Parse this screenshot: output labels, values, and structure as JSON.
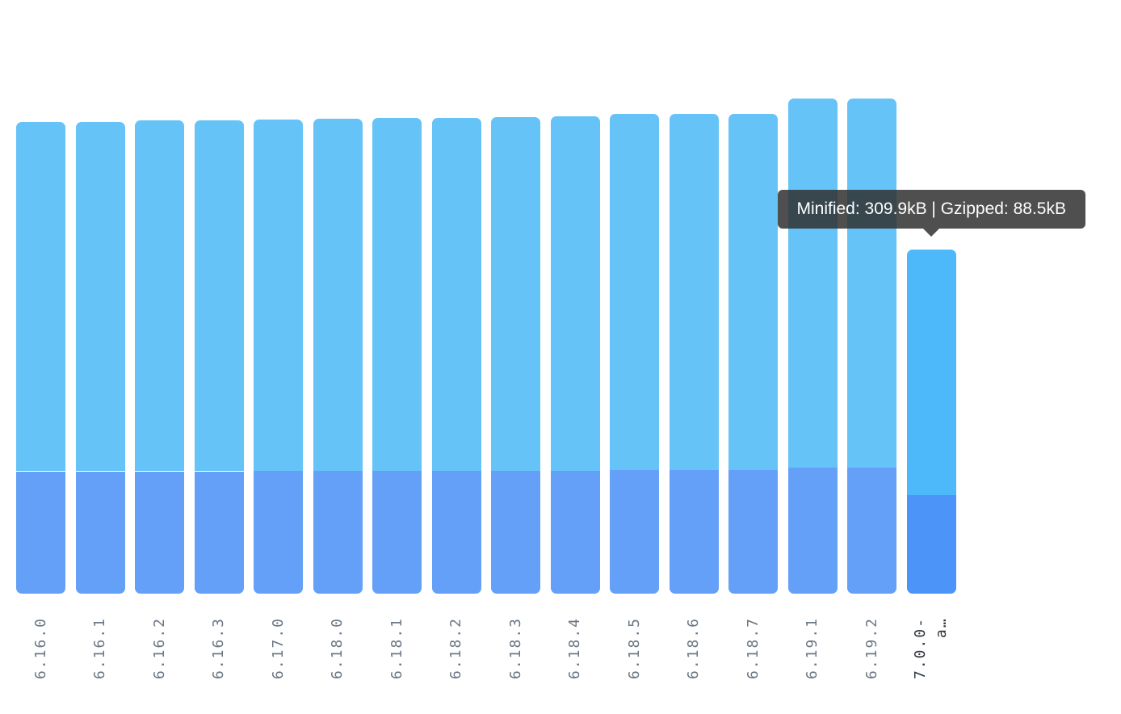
{
  "chart_data": {
    "type": "bar",
    "stacked": true,
    "categories": [
      "6.16.0",
      "6.16.1",
      "6.16.2",
      "6.16.3",
      "6.17.0",
      "6.18.0",
      "6.18.1",
      "6.18.2",
      "6.18.3",
      "6.18.4",
      "6.18.5",
      "6.18.6",
      "6.18.7",
      "6.19.1",
      "6.19.2",
      "7.0.0-a…"
    ],
    "series": [
      {
        "key": "minified",
        "values": [
          424.8,
          424.8,
          426.3,
          426.3,
          427.0,
          427.7,
          428.5,
          428.5,
          429.2,
          429.9,
          432.1,
          432.1,
          432.1,
          445.9,
          445.9,
          309.9
        ]
      },
      {
        "key": "gzipped",
        "values": [
          110.2,
          110.2,
          110.2,
          110.2,
          110.6,
          110.6,
          110.6,
          110.6,
          110.6,
          110.6,
          111.3,
          111.3,
          111.3,
          113.5,
          113.5,
          88.5
        ]
      }
    ],
    "units": "kB",
    "active_index": 15,
    "grid": false,
    "colors": {
      "minified": "#65c3f8",
      "gzipped": "#64a0f8",
      "minified_active": "#4db8fa",
      "gzipped_active": "#4d94f8"
    },
    "tooltip": "Minified: 309.9kB | Gzipped: 88.5kB"
  }
}
